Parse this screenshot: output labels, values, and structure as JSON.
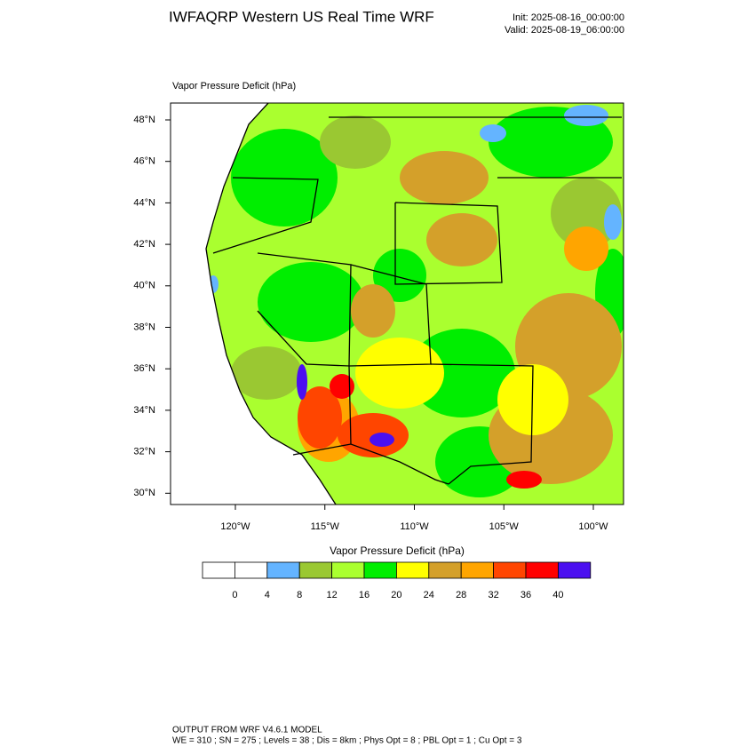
{
  "header": {
    "title": "IWFAQRP Western US Real Time WRF",
    "init": "Init: 2025-08-16_00:00:00",
    "valid": "Valid: 2025-08-19_06:00:00"
  },
  "map": {
    "title": "Vapor Pressure Deficit   (hPa)",
    "lat_ticks": [
      "48°N",
      "46°N",
      "44°N",
      "42°N",
      "40°N",
      "38°N",
      "36°N",
      "34°N",
      "32°N",
      "30°N"
    ],
    "lon_ticks": [
      "120°W",
      "115°W",
      "110°W",
      "105°W",
      "100°W"
    ]
  },
  "colorbar": {
    "title": "Vapor Pressure Deficit  (hPa)",
    "levels": [
      0,
      4,
      8,
      12,
      16,
      20,
      24,
      28,
      32,
      36,
      40
    ],
    "colors": [
      "#ffffff",
      "#ffffff",
      "#64b4ff",
      "#9ac832",
      "#aaff2f",
      "#00ee00",
      "#ffff00",
      "#d4a02a",
      "#ffa500",
      "#ff4500",
      "#ff0000",
      "#4b10f0"
    ]
  },
  "footer": {
    "line1": "OUTPUT FROM WRF V4.6.1 MODEL",
    "line2": "WE = 310 ; SN = 275 ; Levels = 38 ; Dis = 8km ; Phys Opt = 8 ; PBL Opt = 1 ; Cu Opt = 3"
  }
}
